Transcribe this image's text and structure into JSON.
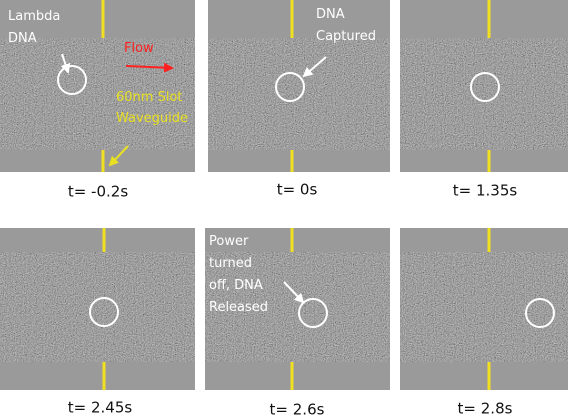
{
  "panels": [
    {
      "caption": "t= -0.2s",
      "annotations": [
        {
          "lines": [
            "Lambda",
            "DNA"
          ],
          "color": "#ffffff"
        },
        {
          "lines": [
            "Flow"
          ],
          "color": "#ff2020"
        },
        {
          "lines": [
            "60nm Slot",
            "Waveguide"
          ],
          "color": "#e8e020"
        }
      ]
    },
    {
      "caption": "t= 0s",
      "annotations": [
        {
          "lines": [
            "DNA",
            "Captured"
          ],
          "color": "#ffffff"
        }
      ]
    },
    {
      "caption": "t= 1.35s",
      "annotations": []
    },
    {
      "caption": "t= 2.45s",
      "annotations": []
    },
    {
      "caption": "t= 2.6s",
      "annotations": [
        {
          "lines": [
            "Power",
            "turned",
            "off, DNA",
            "Released"
          ],
          "color": "#ffffff"
        }
      ]
    },
    {
      "caption": "t= 2.8s",
      "annotations": []
    }
  ]
}
